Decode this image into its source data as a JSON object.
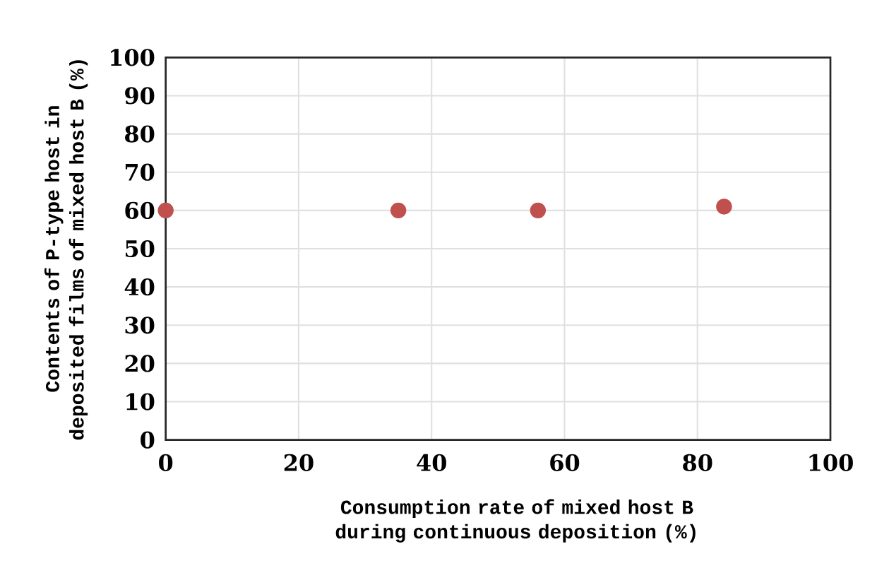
{
  "chart_data": {
    "type": "scatter",
    "xlabel": "Consumption rate of mixed host B during continuous deposition (%)",
    "ylabel": "Contents of P-type host in deposited films of mixed host B (%)",
    "x": [
      0,
      35,
      56,
      84
    ],
    "values": [
      60,
      60,
      60,
      61
    ],
    "color": "#c0504d",
    "marker": "circle",
    "xlim": [
      0,
      100
    ],
    "xticks": [
      0,
      20,
      40,
      60,
      80,
      100
    ],
    "ylim": [
      0,
      100
    ],
    "yticks": [
      0,
      10,
      20,
      30,
      40,
      50,
      60,
      70,
      80,
      90,
      100
    ],
    "grid": true
  }
}
